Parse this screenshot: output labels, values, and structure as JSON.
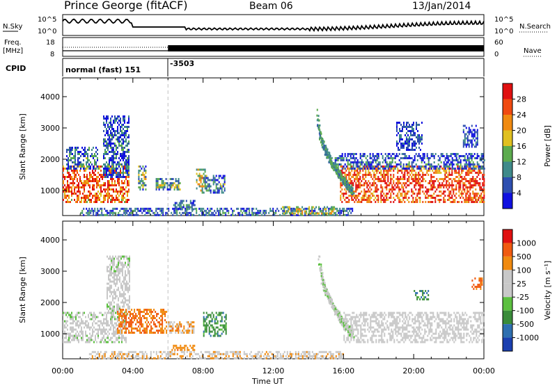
{
  "header": {
    "station": "Prince George (fitACF)",
    "beam": "Beam 06",
    "date": "13/Jan/2014"
  },
  "strip_panels": {
    "nsky": {
      "label": "N.Sky",
      "ticks": [
        "10^5",
        "10^0"
      ]
    },
    "nsearch": {
      "label": "N.Search",
      "ticks": [
        "10^5",
        "10^0"
      ]
    },
    "freq": {
      "label_line1": "Freq.",
      "label_line2": "[MHz]",
      "ticks": [
        "18",
        "8"
      ]
    },
    "nave": {
      "label": "Nave",
      "ticks": [
        "60",
        "0"
      ]
    },
    "cpid": {
      "label": "CPID",
      "mode_text": "normal (fast) 151",
      "mode_change": "-3503"
    }
  },
  "colors": {
    "power_scale": [
      "#1010e0",
      "#2e4fb0",
      "#3f8a8a",
      "#5cab4e",
      "#e0c020",
      "#f08a10",
      "#f04a10",
      "#e01010"
    ],
    "velocity_scale": [
      "#1b3fb0",
      "#2e6fb0",
      "#3a8c3a",
      "#5cc040",
      "#c8c8c8",
      "#c8c8c8",
      "#f08a10",
      "#f05a10",
      "#e01010"
    ],
    "vertical_marker": "#c0c0c0"
  },
  "time_axis": {
    "label": "Time UT",
    "ticks": [
      "00:00",
      "04:00",
      "08:00",
      "12:00",
      "16:00",
      "20:00",
      "00:00"
    ]
  },
  "chart_data": [
    {
      "type": "heatmap",
      "name": "power",
      "ylabel": "Slant Range [km]",
      "colorbar_label": "Power [dB]",
      "colorbar_ticks": [
        "28",
        "24",
        "20",
        "16",
        "12",
        "8",
        "4"
      ],
      "x_range_hours": [
        0,
        24
      ],
      "ylim": [
        200,
        4600
      ],
      "y_ticks": [
        1000,
        2000,
        3000,
        4000
      ],
      "regions": [
        {
          "t": [
            0.0,
            3.8
          ],
          "r": [
            600,
            1800
          ],
          "level": 0.85,
          "noise": 0.5
        },
        {
          "t": [
            0.2,
            2.0
          ],
          "r": [
            1700,
            2400
          ],
          "level": 0.3,
          "noise": 0.5
        },
        {
          "t": [
            2.3,
            3.8
          ],
          "r": [
            1400,
            3400
          ],
          "level": 0.25,
          "noise": 0.5
        },
        {
          "t": [
            4.3,
            4.7
          ],
          "r": [
            1000,
            1800
          ],
          "level": 0.45,
          "noise": 0.5
        },
        {
          "t": [
            5.3,
            6.7
          ],
          "r": [
            1000,
            1400
          ],
          "level": 0.45,
          "noise": 0.5
        },
        {
          "t": [
            6.3,
            7.5
          ],
          "r": [
            400,
            700
          ],
          "level": 0.3,
          "noise": 0.3
        },
        {
          "t": [
            7.6,
            8.2
          ],
          "r": [
            900,
            1700
          ],
          "level": 0.6,
          "noise": 0.5
        },
        {
          "t": [
            8.0,
            9.2
          ],
          "r": [
            900,
            1500
          ],
          "level": 0.3,
          "noise": 0.5
        },
        {
          "t": [
            1.0,
            16.5
          ],
          "r": [
            200,
            450
          ],
          "level": 0.3,
          "noise": 0.4
        },
        {
          "t": [
            12.5,
            15.5
          ],
          "r": [
            250,
            500
          ],
          "level": 0.55,
          "noise": 0.4
        },
        {
          "t": [
            15.8,
            24.0
          ],
          "r": [
            600,
            1800
          ],
          "level": 0.9,
          "noise": 0.5
        },
        {
          "t": [
            15.5,
            24.0
          ],
          "r": [
            1700,
            2200
          ],
          "level": 0.25,
          "noise": 0.5
        },
        {
          "t": [
            19.0,
            20.5
          ],
          "r": [
            2300,
            3200
          ],
          "level": 0.2,
          "noise": 0.3
        },
        {
          "t": [
            22.8,
            23.6
          ],
          "r": [
            2400,
            3100
          ],
          "level": 0.2,
          "noise": 0.3
        }
      ],
      "arcs": [
        {
          "t0": 14.5,
          "t1": 16.5,
          "r0": 3500,
          "r1": 1000,
          "level": 0.35
        }
      ]
    },
    {
      "type": "heatmap",
      "name": "velocity",
      "ylabel": "Slant Range [km]",
      "colorbar_label": "Velocity [m s⁻¹]",
      "colorbar_ticks": [
        "1000",
        "500",
        "100",
        "25",
        "-25",
        "-100",
        "-500",
        "-1000"
      ],
      "x_range_hours": [
        0,
        24
      ],
      "ylim": [
        200,
        4600
      ],
      "y_ticks": [
        1000,
        2000,
        3000,
        4000
      ],
      "regions": [
        {
          "t": [
            0.0,
            3.6
          ],
          "r": [
            700,
            1700
          ],
          "level": 0.5,
          "noise": 0.1
        },
        {
          "t": [
            2.5,
            3.8
          ],
          "r": [
            1600,
            3500
          ],
          "level": 0.5,
          "noise": 0.1
        },
        {
          "t": [
            3.1,
            5.9
          ],
          "r": [
            1000,
            1800
          ],
          "level": 0.8,
          "noise": 0.15
        },
        {
          "t": [
            6.2,
            7.5
          ],
          "r": [
            450,
            650
          ],
          "level": 0.75,
          "noise": 0.1
        },
        {
          "t": [
            6.0,
            7.5
          ],
          "r": [
            1000,
            1400
          ],
          "level": 0.72,
          "noise": 0.2
        },
        {
          "t": [
            8.0,
            9.3
          ],
          "r": [
            900,
            1700
          ],
          "level": 0.3,
          "noise": 0.15
        },
        {
          "t": [
            1.5,
            16.0
          ],
          "r": [
            200,
            450
          ],
          "level": 0.66,
          "noise": 0.1
        },
        {
          "t": [
            16.0,
            24.0
          ],
          "r": [
            700,
            1700
          ],
          "level": 0.5,
          "noise": 0.05
        },
        {
          "t": [
            20.0,
            20.8
          ],
          "r": [
            2100,
            2400
          ],
          "level": 0.3,
          "noise": 0.15
        },
        {
          "t": [
            23.3,
            23.9
          ],
          "r": [
            2400,
            2800
          ],
          "level": 0.82,
          "noise": 0.15
        }
      ],
      "arcs": [
        {
          "t0": 14.6,
          "t1": 16.5,
          "r0": 3500,
          "r1": 1000,
          "level": 0.5
        }
      ]
    }
  ]
}
